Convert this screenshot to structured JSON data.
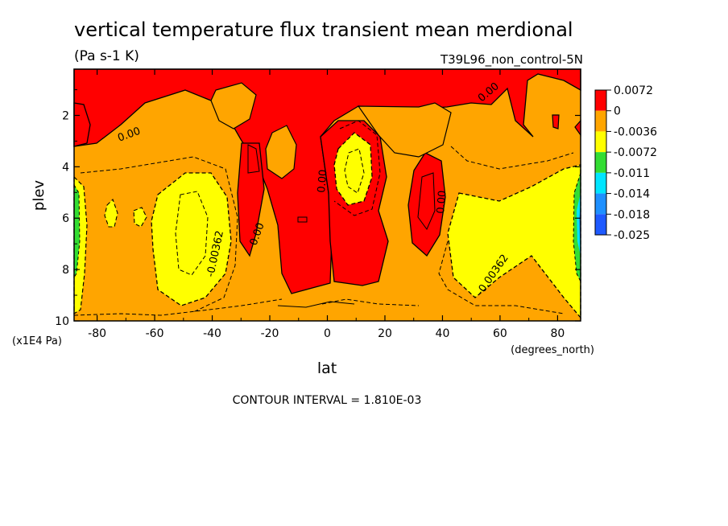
{
  "chart_data": {
    "type": "heatmap",
    "title": "vertical temperature flux transient mean merdional",
    "units": "(Pa s-1 K)",
    "dataset": "T39L96_non_control-5N",
    "xlabel": "lat",
    "x_units": "(degrees_north)",
    "ylabel": "plev",
    "y_units": "(x1E4 Pa)",
    "xlim": [
      -88,
      88
    ],
    "ylim": [
      10,
      0.2
    ],
    "x_ticks": [
      -80,
      -60,
      -40,
      -20,
      0,
      20,
      40,
      60,
      80
    ],
    "y_ticks": [
      2,
      4,
      6,
      8,
      10
    ],
    "x_tick_labels": [
      "-80",
      "-60",
      "-40",
      "-20",
      "0",
      "20",
      "40",
      "60",
      "80"
    ],
    "y_tick_labels": [
      "2",
      "4",
      "6",
      "8",
      "10"
    ],
    "footer": "CONTOUR INTERVAL = 1.810E-03",
    "contour_labels": [
      "0.00",
      "0.00",
      "0.00",
      "0.00",
      "0.00",
      "-0.00362",
      "-0.00362"
    ],
    "legend": {
      "placement": "right",
      "colors": [
        "#ff0000",
        "#ffa500",
        "#ffff00",
        "#33dd33",
        "#00e5ff",
        "#1e90ff",
        "#1e5aff"
      ],
      "labels": [
        "0.0072",
        "0",
        "-0.0036",
        "-0.0072",
        "-0.011",
        "-0.014",
        "-0.018",
        "-0.025"
      ]
    },
    "regions": [
      {
        "level": "positive",
        "lat_range": [
          -20,
          0
        ],
        "plev_range": [
          0.2,
          9
        ]
      },
      {
        "level": "positive",
        "lat_range": [
          30,
          40
        ],
        "plev_range": [
          4,
          8
        ]
      },
      {
        "level": "negative",
        "lat_range": [
          -55,
          -40
        ],
        "plev_range": [
          4.5,
          9
        ]
      },
      {
        "level": "negative",
        "lat_range": [
          3,
          13
        ],
        "plev_range": [
          3,
          5
        ]
      },
      {
        "level": "negative",
        "lat_range": [
          42,
          88
        ],
        "plev_range": [
          5,
          9
        ]
      }
    ]
  }
}
